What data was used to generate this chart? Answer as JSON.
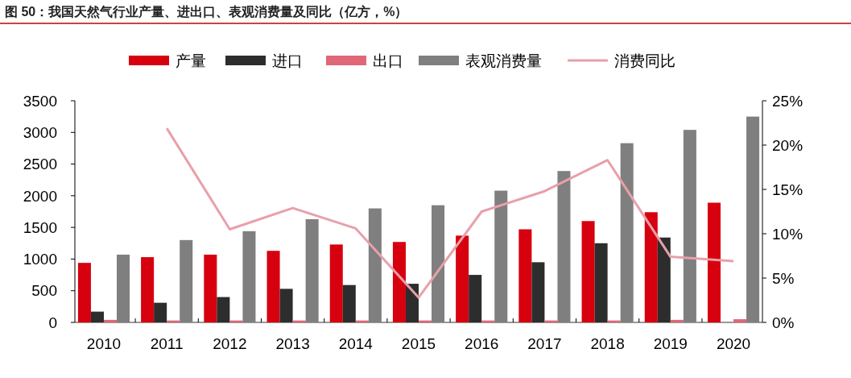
{
  "chart_data": {
    "type": "bar",
    "title": "图 50：我国天然气行业产量、进出口、表观消费量及同比（亿方，%）",
    "categories": [
      "2010",
      "2011",
      "2012",
      "2013",
      "2014",
      "2015",
      "2016",
      "2017",
      "2018",
      "2019",
      "2020"
    ],
    "series": [
      {
        "name": "产量",
        "color": "#d7000f",
        "values": [
          940,
          1030,
          1070,
          1130,
          1230,
          1270,
          1370,
          1470,
          1600,
          1740,
          1890
        ]
      },
      {
        "name": "进口",
        "color": "#2d2d2d",
        "values": [
          170,
          310,
          400,
          530,
          590,
          610,
          750,
          950,
          1250,
          1340,
          null
        ]
      },
      {
        "name": "出口",
        "color": "#e06777",
        "values": [
          40,
          30,
          30,
          30,
          30,
          30,
          30,
          30,
          30,
          40,
          50
        ]
      },
      {
        "name": "表观消费量",
        "color": "#7f7f7f",
        "values": [
          1070,
          1300,
          1440,
          1630,
          1800,
          1850,
          2080,
          2390,
          2830,
          3040,
          3250
        ]
      },
      {
        "name": "消费同比",
        "type": "line",
        "axis": "y2",
        "color": "#e8a0aa",
        "values": [
          null,
          21.9,
          10.5,
          12.9,
          10.6,
          2.8,
          12.5,
          14.8,
          18.3,
          7.4,
          6.9
        ]
      }
    ],
    "ylim": [
      0,
      3500
    ],
    "yticks": [
      0,
      500,
      1000,
      1500,
      2000,
      2500,
      3000,
      3500
    ],
    "y2lim": [
      0,
      25
    ],
    "y2ticks": [
      {
        "value": 0,
        "label": "0%"
      },
      {
        "value": 5,
        "label": "5%"
      },
      {
        "value": 10,
        "label": "10%"
      },
      {
        "value": 15,
        "label": "15%"
      },
      {
        "value": 20,
        "label": "20%"
      },
      {
        "value": 25,
        "label": "25%"
      }
    ],
    "legend": "top",
    "grid": false
  }
}
